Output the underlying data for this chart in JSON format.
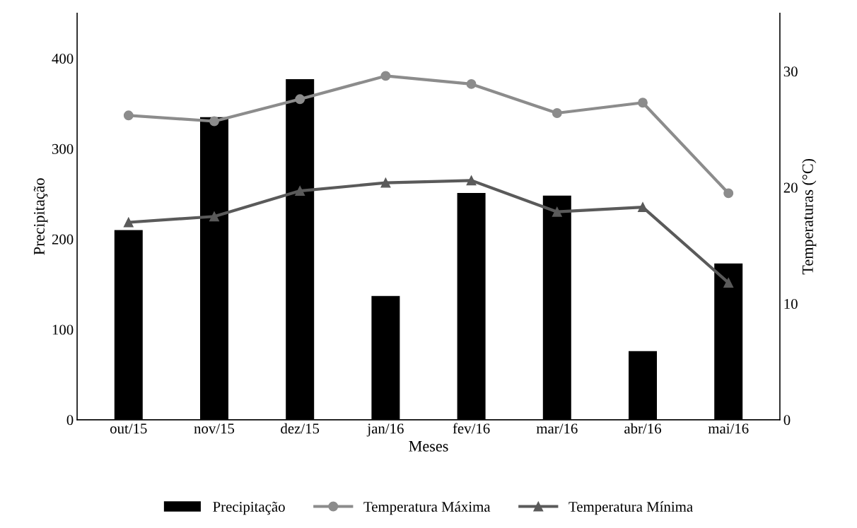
{
  "chart_data": {
    "type": "bar",
    "xlabel": "Meses",
    "ylabel": "Precipitação",
    "y2label": "Temperaturas (°C)",
    "categories": [
      "out/15",
      "nov/15",
      "dez/15",
      "jan/16",
      "fev/16",
      "mar/16",
      "abr/16",
      "mai/16"
    ],
    "series": [
      {
        "name": "Precipitação",
        "color": "#000000",
        "values": [
          210,
          335,
          377,
          137,
          251,
          248,
          76,
          173
        ]
      },
      {
        "name": "Temperatura Máxima",
        "type": "line",
        "axis": "y2",
        "marker": "circle",
        "color": "#8c8c8c",
        "values": [
          26.2,
          25.7,
          27.6,
          29.6,
          28.9,
          26.4,
          27.3,
          19.5
        ]
      },
      {
        "name": "Temperatura Mínima",
        "type": "line",
        "axis": "y2",
        "marker": "triangle",
        "color": "#5a5a5a",
        "values": [
          17.0,
          17.5,
          19.7,
          20.4,
          20.6,
          17.9,
          18.3,
          11.8
        ]
      }
    ],
    "ylim": [
      0,
      450
    ],
    "yticks": [
      0,
      100,
      200,
      300,
      400
    ],
    "y2lim": [
      0,
      35
    ],
    "y2ticks": [
      0,
      10,
      20,
      30
    ],
    "grid": false,
    "legend": "bottom"
  }
}
